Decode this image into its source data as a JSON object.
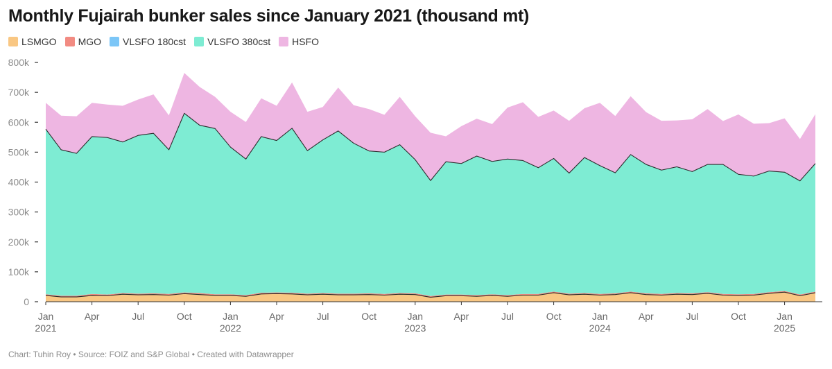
{
  "title": "Monthly Fujairah bunker sales since January 2021 (thousand mt)",
  "footer": "Chart: Tuhin Roy • Source: FOIZ and S&P Global • Created with Datawrapper",
  "chart_data": {
    "type": "area",
    "stacked": true,
    "title": "Monthly Fujairah bunker sales since January 2021 (thousand mt)",
    "ylim": [
      0,
      800000
    ],
    "grid": false,
    "legend_position": "top-left",
    "y_ticks": [
      {
        "value": 0,
        "label": "0"
      },
      {
        "value": 100000,
        "label": "100k"
      },
      {
        "value": 200000,
        "label": "200k"
      },
      {
        "value": 300000,
        "label": "300k"
      },
      {
        "value": 400000,
        "label": "400k"
      },
      {
        "value": 500000,
        "label": "500k"
      },
      {
        "value": 600000,
        "label": "600k"
      },
      {
        "value": 700000,
        "label": "700k"
      },
      {
        "value": 800000,
        "label": "800k"
      }
    ],
    "x_ticks": [
      {
        "index": 0,
        "month": "Jan",
        "year": "2021"
      },
      {
        "index": 3,
        "month": "Apr",
        "year": ""
      },
      {
        "index": 6,
        "month": "Jul",
        "year": ""
      },
      {
        "index": 9,
        "month": "Oct",
        "year": ""
      },
      {
        "index": 12,
        "month": "Jan",
        "year": "2022"
      },
      {
        "index": 15,
        "month": "Apr",
        "year": ""
      },
      {
        "index": 18,
        "month": "Jul",
        "year": ""
      },
      {
        "index": 21,
        "month": "Oct",
        "year": ""
      },
      {
        "index": 24,
        "month": "Jan",
        "year": "2023"
      },
      {
        "index": 27,
        "month": "Apr",
        "year": ""
      },
      {
        "index": 30,
        "month": "Jul",
        "year": ""
      },
      {
        "index": 33,
        "month": "Oct",
        "year": ""
      },
      {
        "index": 36,
        "month": "Jan",
        "year": "2024"
      },
      {
        "index": 39,
        "month": "Apr",
        "year": ""
      },
      {
        "index": 42,
        "month": "Jul",
        "year": ""
      },
      {
        "index": 45,
        "month": "Oct",
        "year": ""
      },
      {
        "index": 48,
        "month": "Jan",
        "year": "2025"
      }
    ],
    "x": [
      "2021-01",
      "2021-02",
      "2021-03",
      "2021-04",
      "2021-05",
      "2021-06",
      "2021-07",
      "2021-08",
      "2021-09",
      "2021-10",
      "2021-11",
      "2021-12",
      "2022-01",
      "2022-02",
      "2022-03",
      "2022-04",
      "2022-05",
      "2022-06",
      "2022-07",
      "2022-08",
      "2022-09",
      "2022-10",
      "2022-11",
      "2022-12",
      "2023-01",
      "2023-02",
      "2023-03",
      "2023-04",
      "2023-05",
      "2023-06",
      "2023-07",
      "2023-08",
      "2023-09",
      "2023-10",
      "2023-11",
      "2023-12",
      "2024-01",
      "2024-02",
      "2024-03",
      "2024-04",
      "2024-05",
      "2024-06",
      "2024-07",
      "2024-08",
      "2024-09",
      "2024-10",
      "2024-11",
      "2024-12",
      "2025-01",
      "2025-02",
      "2025-03"
    ],
    "series": [
      {
        "name": "LSMGO",
        "color": "#f9c783",
        "values": [
          21000,
          16000,
          16000,
          21000,
          20000,
          25000,
          23000,
          24000,
          22000,
          27000,
          24000,
          21000,
          21000,
          18000,
          26000,
          27000,
          26000,
          23000,
          25000,
          23000,
          23000,
          24000,
          22000,
          25000,
          24000,
          15000,
          20000,
          20000,
          18000,
          21000,
          18000,
          22000,
          22000,
          30000,
          23000,
          25000,
          22000,
          24000,
          30000,
          24000,
          22000,
          25000,
          24000,
          28000,
          22000,
          21000,
          22000,
          28000,
          32000,
          20000,
          30000
        ]
      },
      {
        "name": "MGO",
        "color": "#f28b82",
        "values": [
          4000,
          4000,
          4000,
          5000,
          4000,
          4000,
          4000,
          4000,
          4000,
          4000,
          5000,
          4000,
          4000,
          4000,
          4000,
          4000,
          4000,
          4000,
          4000,
          4000,
          4000,
          4000,
          4000,
          4000,
          4000,
          4000,
          4000,
          4000,
          4000,
          4000,
          4000,
          4000,
          4000,
          4000,
          4000,
          4000,
          4000,
          4000,
          4000,
          4000,
          4000,
          4000,
          4000,
          4000,
          4000,
          4000,
          4000,
          4000,
          4000,
          4000,
          4000
        ]
      },
      {
        "name": "VLSFO 180cst",
        "color": "#7cc6f7",
        "values": [
          0,
          0,
          0,
          0,
          0,
          0,
          0,
          0,
          0,
          0,
          0,
          0,
          0,
          0,
          0,
          0,
          0,
          0,
          0,
          0,
          0,
          0,
          0,
          0,
          0,
          0,
          0,
          0,
          0,
          0,
          0,
          0,
          0,
          0,
          0,
          0,
          0,
          0,
          0,
          0,
          0,
          0,
          0,
          0,
          0,
          0,
          0,
          0,
          0,
          0,
          0
        ]
      },
      {
        "name": "VLSFO 380cst",
        "color": "#7eecd3",
        "values": [
          552000,
          488000,
          476000,
          526000,
          525000,
          505000,
          529000,
          535000,
          482000,
          599000,
          561000,
          554000,
          492000,
          455000,
          522000,
          508000,
          550000,
          478000,
          512000,
          544000,
          503000,
          476000,
          474000,
          496000,
          447000,
          386000,
          444000,
          438000,
          465000,
          444000,
          455000,
          446000,
          422000,
          445000,
          403000,
          453000,
          429000,
          403000,
          458000,
          431000,
          414000,
          422000,
          407000,
          427000,
          433000,
          401000,
          394000,
          405000,
          397000,
          380000,
          428000
        ]
      },
      {
        "name": "HSFO",
        "color": "#eeb6e2",
        "values": [
          88000,
          114000,
          124000,
          113000,
          110000,
          121000,
          120000,
          130000,
          115000,
          135000,
          128000,
          106000,
          118000,
          124000,
          128000,
          116000,
          153000,
          130000,
          110000,
          145000,
          127000,
          140000,
          125000,
          160000,
          145000,
          160000,
          85000,
          125000,
          125000,
          125000,
          172000,
          195000,
          170000,
          160000,
          175000,
          165000,
          210000,
          190000,
          195000,
          175000,
          165000,
          155000,
          175000,
          185000,
          145000,
          200000,
          175000,
          160000,
          180000,
          140000,
          165000
        ]
      }
    ]
  }
}
